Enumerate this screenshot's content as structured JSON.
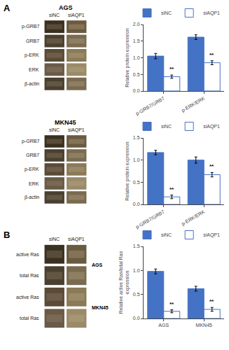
{
  "chart_data": [
    {
      "type": "blot",
      "panel": "A",
      "title": "AGS",
      "categories": [
        "siNC",
        "siAQP1"
      ],
      "rows": [
        "p-GRB7",
        "GRB7",
        "p-ERK",
        "ERK",
        "β-actin"
      ]
    },
    {
      "type": "bar",
      "y_label": "Relative protein expression",
      "categories": [
        "p-GRB7/GRB7",
        "p-ERK/ERK"
      ],
      "series": [
        {
          "name": "siNC",
          "color": "#4472C4",
          "values": [
            1.05,
            1.62
          ],
          "errors": [
            0.08,
            0.07
          ]
        },
        {
          "name": "siAQP1",
          "color": "#FFFFFF",
          "values": [
            0.43,
            0.85
          ],
          "errors": [
            0.05,
            0.06
          ]
        }
      ],
      "ylim": [
        0.0,
        2.0
      ],
      "yticks": [
        {
          "value": 0,
          "label": "0.0"
        },
        0.5,
        {
          "value": 1,
          "label": "1.0"
        },
        1.5,
        {
          "value": 2,
          "label": "2.0"
        }
      ],
      "annotations": [
        {
          "x": "p-GRB7/GRB7",
          "series": "siAQP1",
          "text": "**"
        },
        {
          "x": "p-ERK/ERK",
          "series": "siAQP1",
          "text": "**"
        }
      ],
      "grid": false,
      "legend": "upper right"
    },
    {
      "type": "blot",
      "title": "MKN45",
      "categories": [
        "siNC",
        "siAQP1"
      ],
      "rows": [
        "p-GRB7",
        "GRB7",
        "p-ERK",
        "ERK",
        "β-actin"
      ]
    },
    {
      "type": "bar",
      "y_label": "Relative protein expression",
      "categories": [
        "p-GRB7/GRB7",
        "p-ERK/ERK"
      ],
      "series": [
        {
          "name": "siNC",
          "color": "#4472C4",
          "values": [
            1.17,
            1.0
          ],
          "errors": [
            0.05,
            0.07
          ]
        },
        {
          "name": "siAQP1",
          "color": "#FFFFFF",
          "values": [
            0.17,
            0.67
          ],
          "errors": [
            0.04,
            0.05
          ]
        }
      ],
      "ylim": [
        0.0,
        1.5
      ],
      "yticks": [
        {
          "value": 0,
          "label": "0.0"
        },
        0.5,
        {
          "value": 1,
          "label": "1.0"
        },
        1.5
      ],
      "annotations": [
        {
          "x": "p-GRB7/GRB7",
          "series": "siAQP1",
          "text": "**"
        },
        {
          "x": "p-ERK/ERK",
          "series": "siAQP1",
          "text": "**"
        }
      ],
      "grid": false,
      "legend": "upper right"
    },
    {
      "type": "blot",
      "panel": "B",
      "categories": [
        "siNC",
        "siAQP1"
      ],
      "rows": [
        "active Ras",
        "total Ras",
        "active Ras",
        "total Ras"
      ],
      "annotations": [
        "AGS",
        "MKN45"
      ]
    },
    {
      "type": "bar",
      "y_label": "Relative active Ras/total Ras\nexpression",
      "categories": [
        "AGS",
        "MKN45"
      ],
      "series": [
        {
          "name": "siNC",
          "color": "#4472C4",
          "values": [
            0.98,
            0.62
          ],
          "errors": [
            0.05,
            0.05
          ]
        },
        {
          "name": "siAQP1",
          "color": "#FFFFFF",
          "values": [
            0.15,
            0.19
          ],
          "errors": [
            0.03,
            0.04
          ]
        }
      ],
      "ylim": [
        0.0,
        1.5
      ],
      "yticks": [
        {
          "value": 0,
          "label": "0.0"
        },
        0.5,
        {
          "value": 1,
          "label": "1.0"
        },
        1.5
      ],
      "annotations": [
        {
          "x": "AGS",
          "series": "siAQP1",
          "text": "**"
        },
        {
          "x": "MKN45",
          "series": "siAQP1",
          "text": "**"
        }
      ],
      "grid": false,
      "legend": "upper right"
    }
  ]
}
